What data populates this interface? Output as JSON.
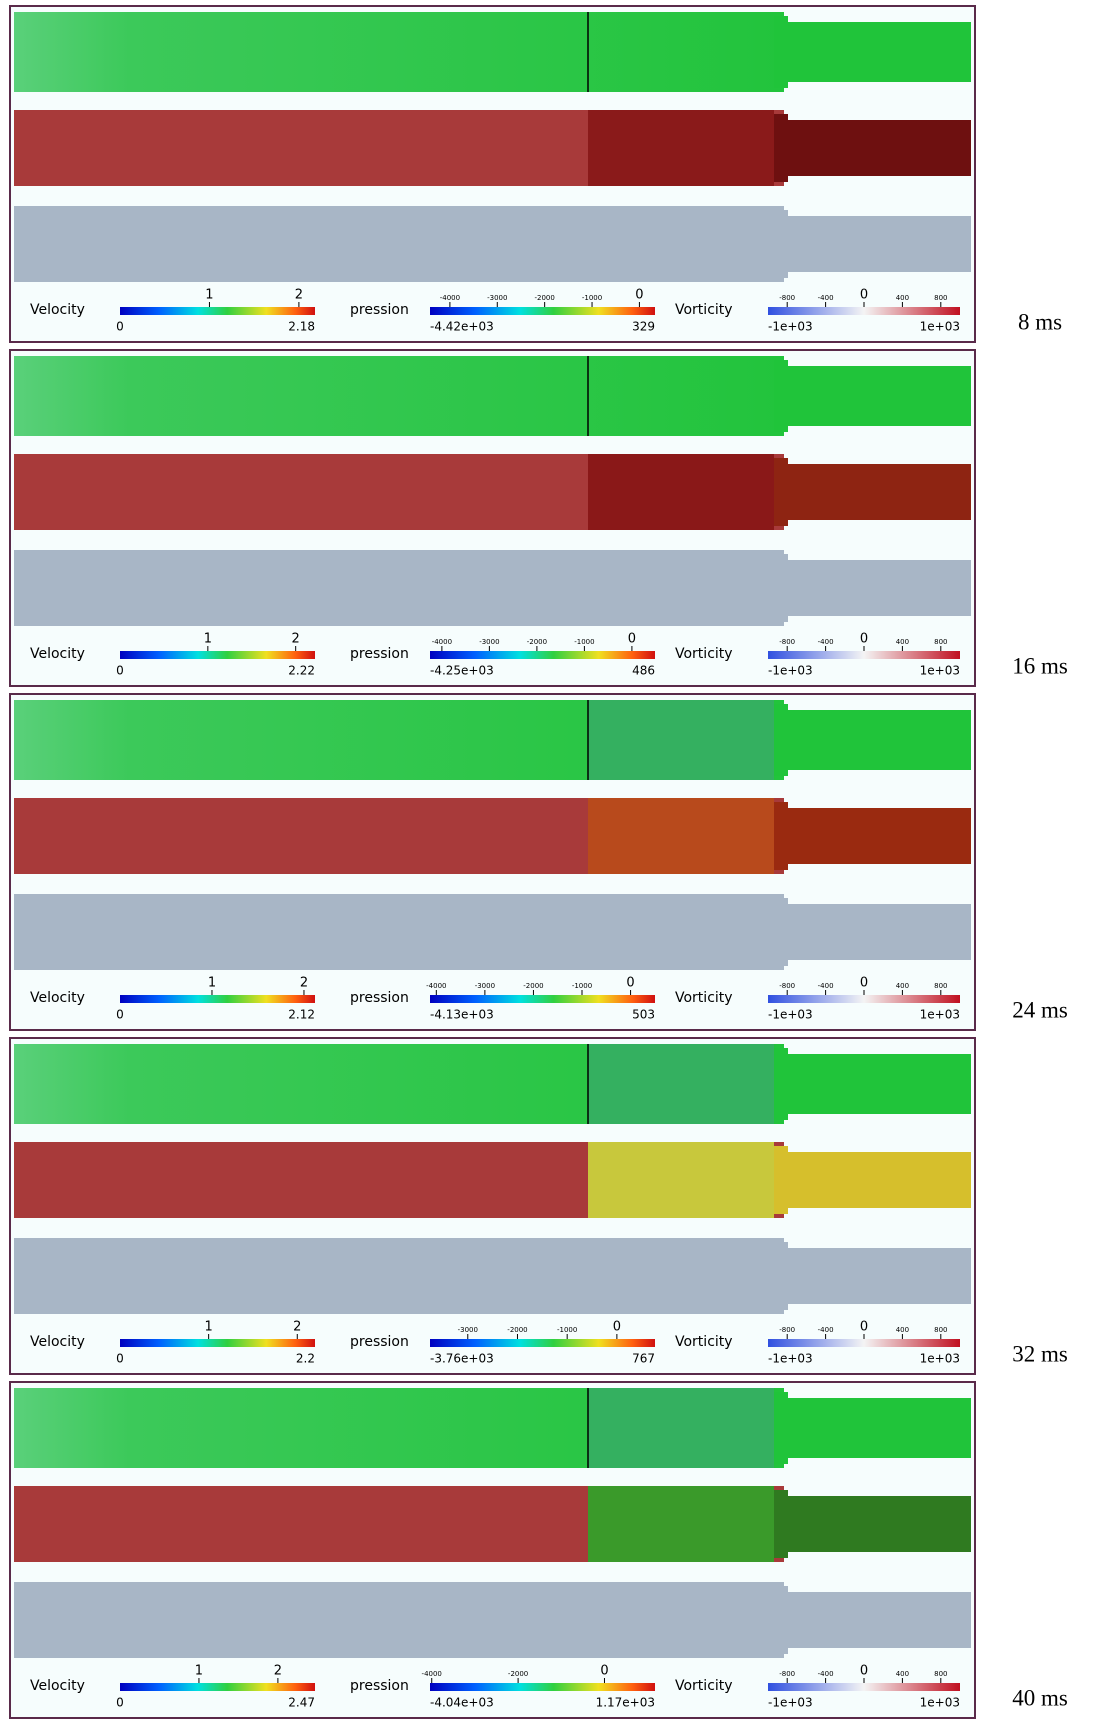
{
  "frames": [
    {
      "time": "8 ms",
      "legends": [
        {
          "label": "Velocity",
          "ticks": [
            "1",
            "2"
          ],
          "min": "0",
          "max": "2.18"
        },
        {
          "label": "pression",
          "ticks": [
            "-4000",
            "-3000",
            "-2000",
            "-1000",
            "0"
          ],
          "min": "-4.42e+03",
          "max": "329"
        },
        {
          "label": "Vorticity",
          "ticks": [
            "-800",
            "-400",
            "0",
            "400",
            "800"
          ],
          "min": "-1e+03",
          "max": "1e+03"
        }
      ]
    },
    {
      "time": "16 ms",
      "legends": [
        {
          "label": "Velocity",
          "ticks": [
            "1",
            "2"
          ],
          "min": "0",
          "max": "2.22"
        },
        {
          "label": "pression",
          "ticks": [
            "-4000",
            "-3000",
            "-2000",
            "-1000",
            "0"
          ],
          "min": "-4.25e+03",
          "max": "486"
        },
        {
          "label": "Vorticity",
          "ticks": [
            "-800",
            "-400",
            "0",
            "400",
            "800"
          ],
          "min": "-1e+03",
          "max": "1e+03"
        }
      ]
    },
    {
      "time": "24 ms",
      "legends": [
        {
          "label": "Velocity",
          "ticks": [
            "1",
            "2"
          ],
          "min": "0",
          "max": "2.12"
        },
        {
          "label": "pression",
          "ticks": [
            "-4000",
            "-3000",
            "-2000",
            "-1000",
            "0"
          ],
          "min": "-4.13e+03",
          "max": "503"
        },
        {
          "label": "Vorticity",
          "ticks": [
            "-800",
            "-400",
            "0",
            "400",
            "800"
          ],
          "min": "-1e+03",
          "max": "1e+03"
        }
      ]
    },
    {
      "time": "32 ms",
      "legends": [
        {
          "label": "Velocity",
          "ticks": [
            "1",
            "2"
          ],
          "min": "0",
          "max": "2.2"
        },
        {
          "label": "pression",
          "ticks": [
            "-3000",
            "-2000",
            "-1000",
            "0"
          ],
          "min": "-3.76e+03",
          "max": "767"
        },
        {
          "label": "Vorticity",
          "ticks": [
            "-800",
            "-400",
            "0",
            "400",
            "800"
          ],
          "min": "-1e+03",
          "max": "1e+03"
        }
      ]
    },
    {
      "time": "40 ms",
      "legends": [
        {
          "label": "Velocity",
          "ticks": [
            "1",
            "2"
          ],
          "min": "0",
          "max": "2.47"
        },
        {
          "label": "pression",
          "ticks": [
            "-4000",
            "-2000",
            "0"
          ],
          "min": "-4.04e+03",
          "max": "1.17e+03"
        },
        {
          "label": "Vorticity",
          "ticks": [
            "-800",
            "-400",
            "0",
            "400",
            "800"
          ],
          "min": "-1e+03",
          "max": "1e+03"
        }
      ]
    }
  ]
}
